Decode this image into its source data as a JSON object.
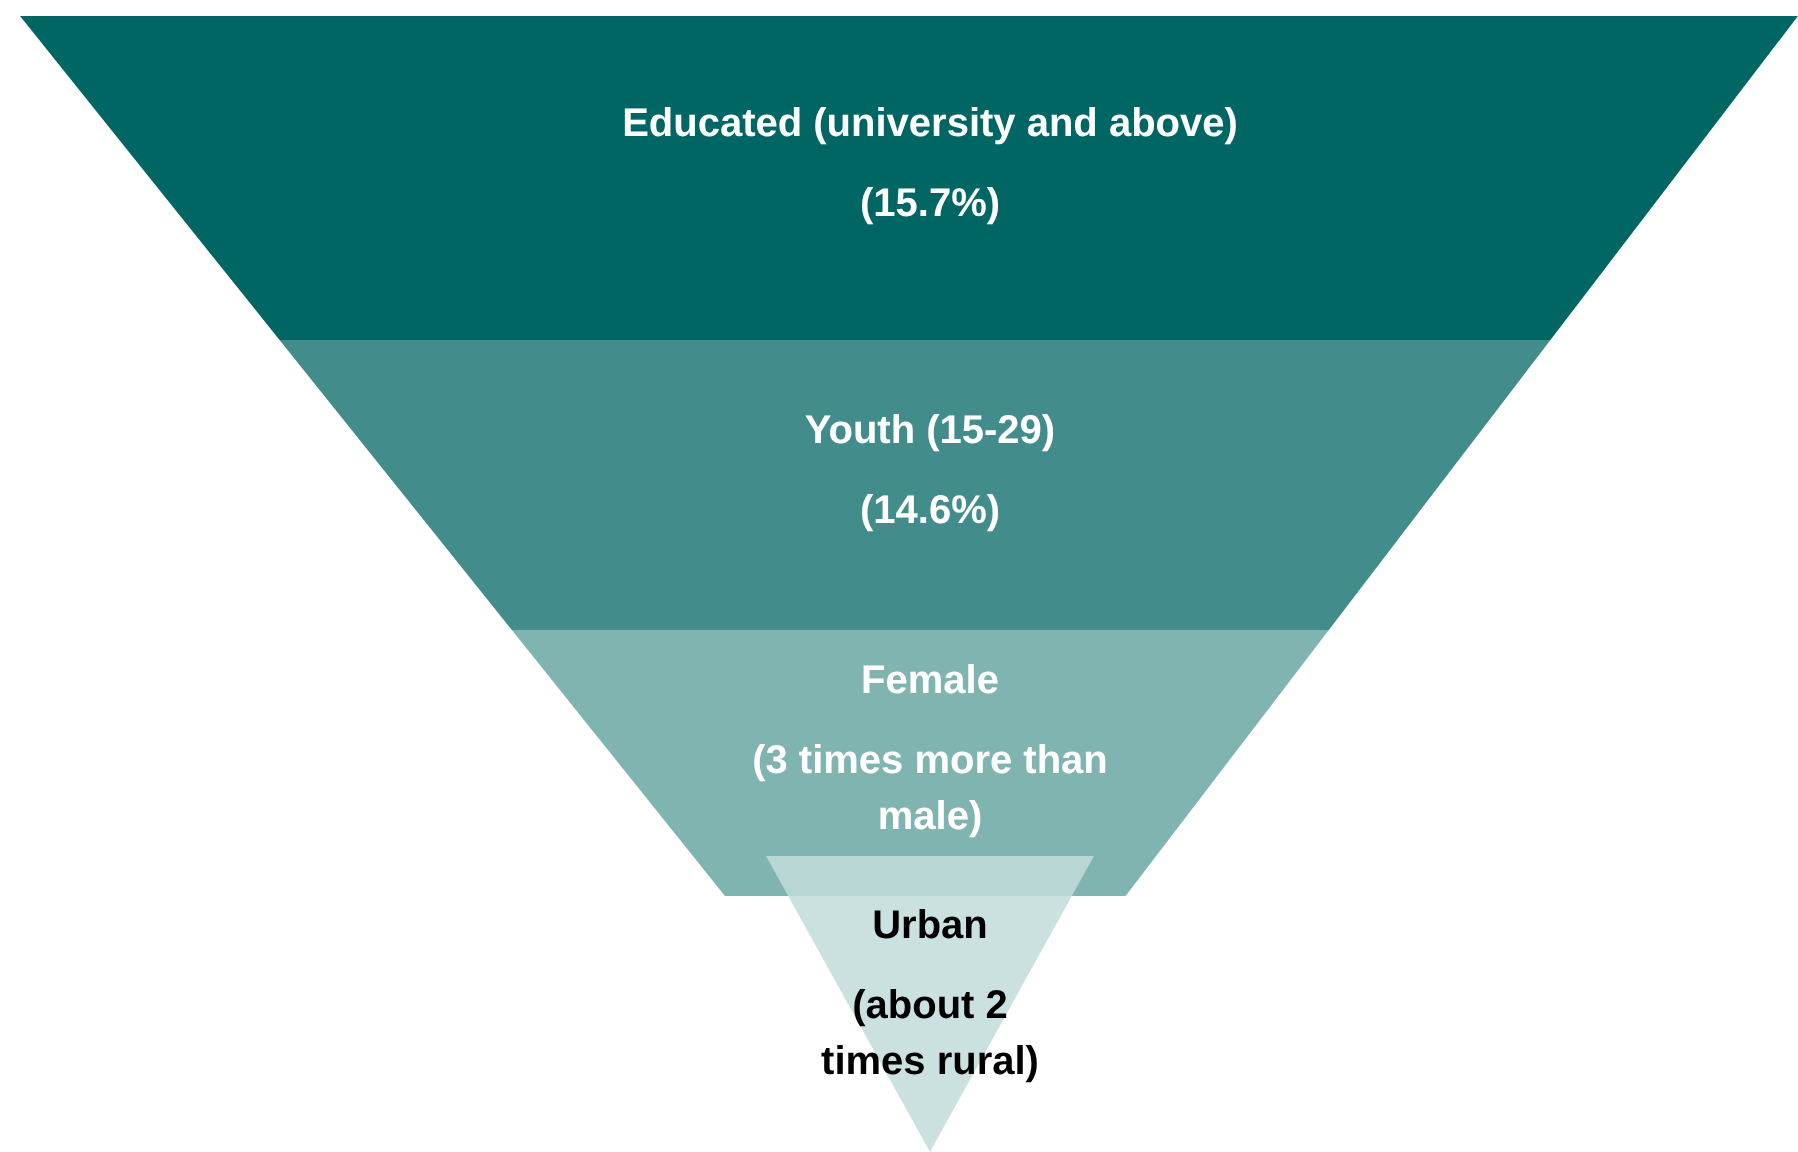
{
  "chart_data": {
    "type": "other",
    "categories": [
      "Educated (university and above)",
      "Youth (15-29)",
      "Female",
      "Urban"
    ],
    "values": [
      15.7,
      14.6,
      3,
      2
    ],
    "value_labels": [
      "(15.7%)",
      "(14.6%)",
      "(3 times more than male)",
      "(about 2 times rural)"
    ],
    "colors": [
      "#006663",
      "#428d8b",
      "#80b4b1",
      "#c1dcda"
    ]
  }
}
